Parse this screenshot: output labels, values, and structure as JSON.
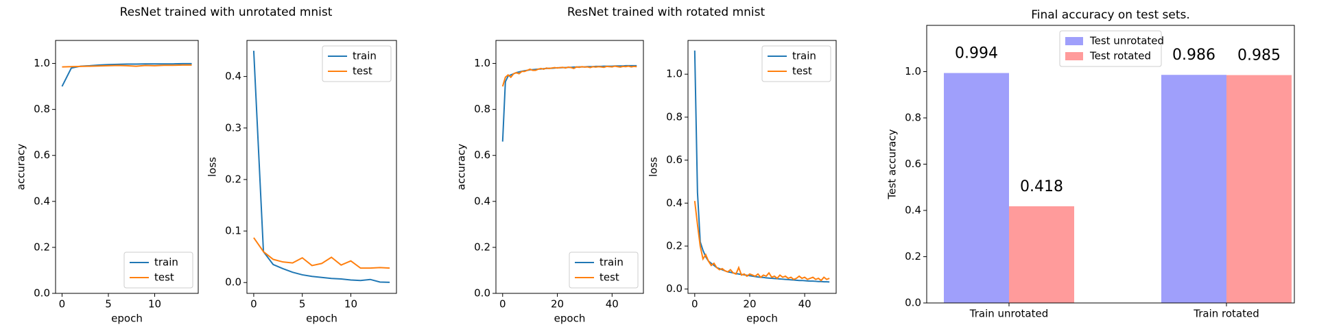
{
  "chart_data": [
    {
      "type": "line",
      "suptitle": "ResNet trained with unrotated mnist",
      "xlabel": "epoch",
      "ylabel": "accuracy",
      "x": [
        0,
        1,
        2,
        3,
        4,
        5,
        6,
        7,
        8,
        9,
        10,
        11,
        12,
        13,
        14
      ],
      "series": [
        {
          "name": "train",
          "color": "#1f77b4",
          "values": [
            0.9,
            0.98,
            0.988,
            0.99,
            0.993,
            0.995,
            0.996,
            0.997,
            0.997,
            0.998,
            0.998,
            0.998,
            0.998,
            0.999,
            0.999
          ]
        },
        {
          "name": "test",
          "color": "#ff7f0e",
          "values": [
            0.985,
            0.986,
            0.987,
            0.988,
            0.989,
            0.99,
            0.991,
            0.99,
            0.988,
            0.991,
            0.99,
            0.992,
            0.992,
            0.993,
            0.993
          ]
        }
      ],
      "xlim": [
        -0.7,
        14.7
      ],
      "xticks": [
        0,
        5,
        10
      ],
      "ylim": [
        0,
        1.1
      ],
      "yticks": [
        {
          "value": 0,
          "label": "0.0"
        },
        0.2,
        0.4,
        0.6,
        0.8,
        {
          "value": 1,
          "label": "1.0"
        }
      ],
      "legend": "lower right"
    },
    {
      "type": "line",
      "xlabel": "epoch",
      "ylabel": "loss",
      "x": [
        0,
        1,
        2,
        3,
        4,
        5,
        6,
        7,
        8,
        9,
        10,
        11,
        12,
        13,
        14
      ],
      "series": [
        {
          "name": "train",
          "color": "#1f77b4",
          "values": [
            0.45,
            0.06,
            0.035,
            0.027,
            0.02,
            0.015,
            0.012,
            0.01,
            0.008,
            0.007,
            0.005,
            0.004,
            0.006,
            0.001,
            0.0005
          ]
        },
        {
          "name": "test",
          "color": "#ff7f0e",
          "values": [
            0.087,
            0.06,
            0.045,
            0.04,
            0.038,
            0.048,
            0.033,
            0.037,
            0.049,
            0.034,
            0.042,
            0.028,
            0.028,
            0.029,
            0.028
          ]
        }
      ],
      "xlim": [
        -0.7,
        14.7
      ],
      "xticks": [
        0,
        5,
        10
      ],
      "ylim": [
        -0.021,
        0.47
      ],
      "yticks": [
        {
          "value": 0,
          "label": "0.0"
        },
        0.1,
        0.2,
        0.3,
        0.4
      ],
      "legend": "upper right"
    },
    {
      "type": "line",
      "suptitle": "ResNet trained with rotated mnist",
      "xlabel": "epoch",
      "ylabel": "accuracy",
      "x": [
        0,
        1,
        2,
        3,
        4,
        5,
        6,
        7,
        8,
        9,
        10,
        11,
        12,
        13,
        14,
        15,
        16,
        17,
        18,
        19,
        20,
        21,
        22,
        23,
        24,
        25,
        26,
        27,
        28,
        29,
        30,
        31,
        32,
        33,
        34,
        35,
        36,
        37,
        38,
        39,
        40,
        41,
        42,
        43,
        44,
        45,
        46,
        47,
        48,
        49
      ],
      "series": [
        {
          "name": "train",
          "color": "#1f77b4",
          "values": [
            0.66,
            0.92,
            0.945,
            0.95,
            0.955,
            0.96,
            0.963,
            0.966,
            0.968,
            0.97,
            0.972,
            0.973,
            0.974,
            0.975,
            0.976,
            0.977,
            0.978,
            0.979,
            0.979,
            0.98,
            0.981,
            0.981,
            0.982,
            0.982,
            0.983,
            0.983,
            0.984,
            0.984,
            0.985,
            0.985,
            0.985,
            0.986,
            0.986,
            0.986,
            0.987,
            0.987,
            0.987,
            0.988,
            0.988,
            0.988,
            0.988,
            0.989,
            0.989,
            0.989,
            0.989,
            0.99,
            0.99,
            0.99,
            0.99,
            0.99
          ]
        },
        {
          "name": "test",
          "color": "#ff7f0e",
          "values": [
            0.9,
            0.94,
            0.95,
            0.94,
            0.955,
            0.96,
            0.955,
            0.965,
            0.965,
            0.97,
            0.975,
            0.97,
            0.97,
            0.975,
            0.978,
            0.975,
            0.98,
            0.978,
            0.98,
            0.982,
            0.98,
            0.982,
            0.983,
            0.98,
            0.984,
            0.982,
            0.978,
            0.985,
            0.983,
            0.986,
            0.984,
            0.985,
            0.982,
            0.986,
            0.984,
            0.986,
            0.985,
            0.983,
            0.987,
            0.986,
            0.985,
            0.988,
            0.986,
            0.984,
            0.987,
            0.986,
            0.988,
            0.985,
            0.987,
            0.986
          ]
        }
      ],
      "xlim": [
        -2.45,
        51.45
      ],
      "xticks": [
        0,
        20,
        40
      ],
      "ylim": [
        0,
        1.1
      ],
      "yticks": [
        {
          "value": 0,
          "label": "0.0"
        },
        0.2,
        0.4,
        0.6,
        0.8,
        {
          "value": 1,
          "label": "1.0"
        }
      ],
      "legend": "lower right"
    },
    {
      "type": "line",
      "xlabel": "epoch",
      "ylabel": "loss",
      "x": [
        0,
        1,
        2,
        3,
        4,
        5,
        6,
        7,
        8,
        9,
        10,
        11,
        12,
        13,
        14,
        15,
        16,
        17,
        18,
        19,
        20,
        21,
        22,
        23,
        24,
        25,
        26,
        27,
        28,
        29,
        30,
        31,
        32,
        33,
        34,
        35,
        36,
        37,
        38,
        39,
        40,
        41,
        42,
        43,
        44,
        45,
        46,
        47,
        48,
        49
      ],
      "series": [
        {
          "name": "train",
          "color": "#1f77b4",
          "values": [
            1.11,
            0.45,
            0.22,
            0.18,
            0.15,
            0.13,
            0.12,
            0.11,
            0.1,
            0.095,
            0.09,
            0.085,
            0.08,
            0.078,
            0.075,
            0.072,
            0.07,
            0.068,
            0.066,
            0.064,
            0.062,
            0.06,
            0.058,
            0.056,
            0.055,
            0.054,
            0.052,
            0.051,
            0.05,
            0.049,
            0.048,
            0.047,
            0.046,
            0.045,
            0.044,
            0.043,
            0.042,
            0.041,
            0.04,
            0.04,
            0.039,
            0.038,
            0.037,
            0.037,
            0.036,
            0.035,
            0.035,
            0.034,
            0.034,
            0.033
          ]
        },
        {
          "name": "test",
          "color": "#ff7f0e",
          "values": [
            0.41,
            0.3,
            0.2,
            0.14,
            0.16,
            0.13,
            0.11,
            0.12,
            0.1,
            0.09,
            0.095,
            0.085,
            0.08,
            0.09,
            0.075,
            0.07,
            0.1,
            0.065,
            0.07,
            0.06,
            0.07,
            0.065,
            0.06,
            0.07,
            0.055,
            0.065,
            0.06,
            0.075,
            0.055,
            0.06,
            0.05,
            0.065,
            0.055,
            0.06,
            0.05,
            0.055,
            0.045,
            0.05,
            0.06,
            0.05,
            0.055,
            0.045,
            0.05,
            0.055,
            0.045,
            0.05,
            0.04,
            0.055,
            0.045,
            0.05
          ]
        }
      ],
      "xlim": [
        -2.45,
        51.45
      ],
      "xticks": [
        0,
        20,
        40
      ],
      "ylim": [
        -0.02,
        1.157
      ],
      "yticks": [
        {
          "value": 0,
          "label": "0.0"
        },
        0.2,
        0.4,
        0.6,
        0.8,
        {
          "value": 1,
          "label": "1.0"
        }
      ],
      "legend": "upper right"
    },
    {
      "type": "bar",
      "title": "Final accuracy on test sets.",
      "ylabel": "Test accuracy",
      "categories": [
        "Train unrotated",
        "Train rotated"
      ],
      "series": [
        {
          "name": "Test unrotated",
          "color": "#9f9ffb",
          "values": [
            0.994,
            0.986
          ]
        },
        {
          "name": "Test rotated",
          "color": "#ff9b9b",
          "values": [
            0.418,
            0.985
          ]
        }
      ],
      "ylim": [
        0,
        1.2
      ],
      "yticks": [
        {
          "value": 0,
          "label": "0.0"
        },
        0.2,
        0.4,
        0.6,
        0.8,
        {
          "value": 1,
          "label": "1.0"
        }
      ],
      "legend": "upper center"
    }
  ]
}
